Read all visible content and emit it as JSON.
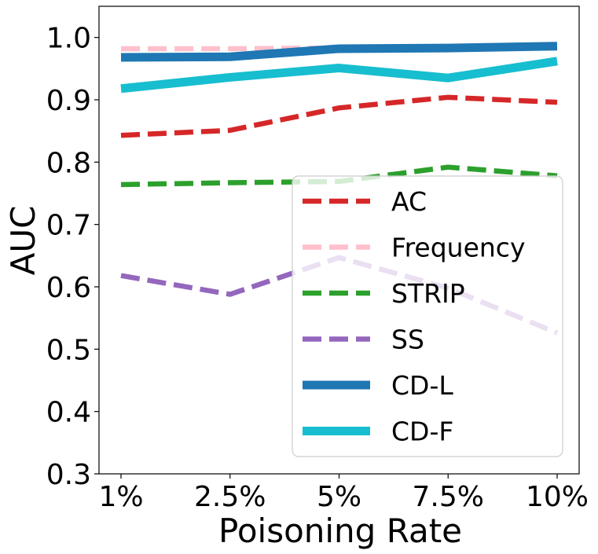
{
  "chart_data": {
    "type": "line",
    "xlabel": "Poisoning Rate",
    "ylabel": "AUC",
    "categories": [
      "1%",
      "2.5%",
      "5%",
      "7.5%",
      "10%"
    ],
    "ylim": [
      0.3,
      1.05
    ],
    "yticks": [
      "0.3",
      "0.4",
      "0.5",
      "0.6",
      "0.7",
      "0.8",
      "0.9",
      "1.0"
    ],
    "grid": false,
    "legend_position": "lower-right",
    "series": [
      {
        "name": "AC",
        "color": "#d62728",
        "style": "dashed",
        "values": [
          0.843,
          0.851,
          0.887,
          0.904,
          0.896
        ]
      },
      {
        "name": "Frequency",
        "color": "#ffc0cb",
        "style": "dashed",
        "values": [
          0.982,
          0.982,
          0.983,
          0.983,
          0.983
        ]
      },
      {
        "name": "STRIP",
        "color": "#2ca02c",
        "style": "dashed",
        "values": [
          0.764,
          0.767,
          0.769,
          0.792,
          0.778
        ]
      },
      {
        "name": "SS",
        "color": "#9467bd",
        "style": "dashed",
        "values": [
          0.618,
          0.588,
          0.647,
          0.598,
          0.526
        ]
      },
      {
        "name": "CD-L",
        "color": "#1f77b4",
        "style": "solid",
        "values": [
          0.968,
          0.969,
          0.982,
          0.983,
          0.986
        ]
      },
      {
        "name": "CD-F",
        "color": "#17becf",
        "style": "solid",
        "values": [
          0.918,
          0.936,
          0.951,
          0.935,
          0.962
        ]
      }
    ]
  }
}
